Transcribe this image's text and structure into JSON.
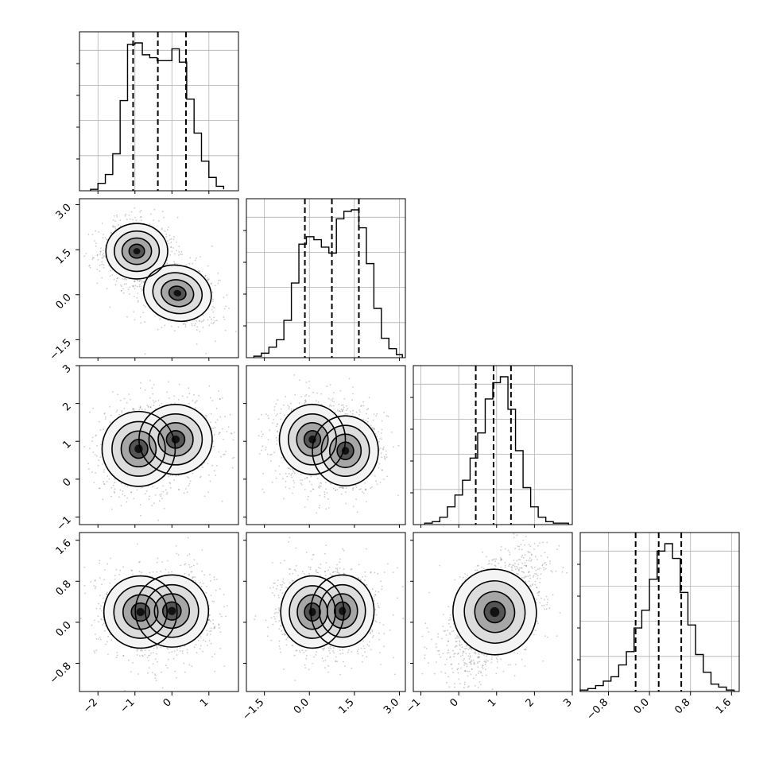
{
  "chart_data": {
    "type": "corner",
    "n_params": 4,
    "grid": true,
    "parameters": [
      {
        "index": 0,
        "range": [
          -2.5,
          1.8
        ],
        "ticks": [
          -2,
          -1,
          0,
          1
        ],
        "tick_labels": [
          "−2",
          "−1",
          "0",
          "1"
        ],
        "quantiles": [
          -1.05,
          -0.38,
          0.38
        ],
        "hist_bins": [
          -2.2,
          -2.0,
          -1.8,
          -1.6,
          -1.4,
          -1.2,
          -1.0,
          -0.8,
          -0.6,
          -0.4,
          -0.2,
          0.0,
          0.2,
          0.4,
          0.6,
          0.8,
          1.0,
          1.2,
          1.4
        ],
        "hist_heights": [
          0.01,
          0.05,
          0.11,
          0.25,
          0.61,
          0.99,
          1.0,
          0.92,
          0.9,
          0.88,
          0.88,
          0.96,
          0.87,
          0.62,
          0.39,
          0.2,
          0.09,
          0.03,
          0.01
        ]
      },
      {
        "index": 1,
        "range": [
          -2.1,
          3.2
        ],
        "ticks": [
          -1.5,
          0.0,
          1.5,
          3.0
        ],
        "tick_labels": [
          "−1.5",
          "0.0",
          "1.5",
          "3.0"
        ],
        "quantiles": [
          -0.15,
          0.75,
          1.65
        ],
        "hist_bins": [
          -1.85,
          -1.6,
          -1.35,
          -1.1,
          -0.85,
          -0.6,
          -0.35,
          -0.1,
          0.15,
          0.4,
          0.65,
          0.9,
          1.15,
          1.4,
          1.65,
          1.9,
          2.15,
          2.4,
          2.65,
          2.9,
          3.1
        ],
        "hist_heights": [
          0.01,
          0.03,
          0.07,
          0.12,
          0.25,
          0.5,
          0.76,
          0.81,
          0.79,
          0.74,
          0.7,
          0.93,
          0.98,
          0.99,
          0.87,
          0.63,
          0.33,
          0.13,
          0.06,
          0.02
        ]
      },
      {
        "index": 2,
        "range": [
          -1.2,
          3.0
        ],
        "ticks": [
          -1,
          0,
          1,
          2,
          3
        ],
        "tick_labels": [
          "−1",
          "0",
          "1",
          "2",
          "3"
        ],
        "quantiles": [
          0.45,
          0.92,
          1.38
        ],
        "hist_bins": [
          -0.9,
          -0.7,
          -0.5,
          -0.3,
          -0.1,
          0.1,
          0.3,
          0.5,
          0.7,
          0.9,
          1.1,
          1.3,
          1.5,
          1.7,
          1.9,
          2.1,
          2.3,
          2.5,
          2.7,
          2.9
        ],
        "hist_heights": [
          0.01,
          0.02,
          0.05,
          0.12,
          0.2,
          0.3,
          0.45,
          0.62,
          0.85,
          0.96,
          1.0,
          0.78,
          0.5,
          0.25,
          0.12,
          0.05,
          0.02,
          0.01,
          0.01
        ]
      },
      {
        "index": 3,
        "range": [
          -1.35,
          1.75
        ],
        "ticks": [
          -0.8,
          0.0,
          0.8,
          1.6
        ],
        "tick_labels": [
          "−0.8",
          "0.0",
          "0.8",
          "1.6"
        ],
        "quantiles": [
          -0.27,
          0.18,
          0.62
        ],
        "hist_bins": [
          -1.35,
          -1.2,
          -1.05,
          -0.9,
          -0.75,
          -0.6,
          -0.45,
          -0.3,
          -0.15,
          0.0,
          0.15,
          0.3,
          0.45,
          0.6,
          0.75,
          0.9,
          1.05,
          1.2,
          1.35,
          1.5,
          1.65
        ],
        "hist_heights": [
          0.01,
          0.02,
          0.04,
          0.07,
          0.1,
          0.18,
          0.27,
          0.43,
          0.55,
          0.76,
          0.95,
          1.0,
          0.9,
          0.67,
          0.45,
          0.25,
          0.13,
          0.05,
          0.03,
          0.01
        ]
      }
    ],
    "joint_modes": [
      {
        "x": 1,
        "y": 0,
        "centers": [
          [
            -0.95,
            1.45
          ],
          [
            0.15,
            0.05
          ]
        ],
        "spread": [
          [
            0.38,
            0.42
          ],
          [
            0.42,
            0.42
          ]
        ],
        "tilt": [
          0,
          -0.4
        ]
      },
      {
        "x": 2,
        "y": 0,
        "centers": [
          [
            -0.9,
            0.8
          ],
          [
            0.1,
            1.05
          ]
        ],
        "spread": [
          [
            0.45,
            0.45
          ],
          [
            0.45,
            0.42
          ]
        ],
        "tilt": [
          0,
          0
        ]
      },
      {
        "x": 2,
        "y": 1,
        "centers": [
          [
            0.1,
            1.05
          ],
          [
            1.2,
            0.75
          ]
        ],
        "spread": [
          [
            0.5,
            0.42
          ],
          [
            0.5,
            0.42
          ]
        ],
        "tilt": [
          0,
          0
        ]
      },
      {
        "x": 3,
        "y": 0,
        "centers": [
          [
            -0.85,
            0.2
          ],
          [
            0.0,
            0.22
          ]
        ],
        "spread": [
          [
            0.45,
            0.32
          ],
          [
            0.45,
            0.32
          ]
        ],
        "tilt": [
          0,
          0
        ]
      },
      {
        "x": 3,
        "y": 1,
        "centers": [
          [
            0.1,
            0.2
          ],
          [
            1.1,
            0.22
          ]
        ],
        "spread": [
          [
            0.48,
            0.32
          ],
          [
            0.48,
            0.32
          ]
        ],
        "tilt": [
          0,
          0
        ]
      },
      {
        "x": 3,
        "y": 2,
        "centers": [
          [
            0.95,
            0.2
          ]
        ],
        "spread": [
          [
            0.5,
            0.38
          ]
        ],
        "tilt": [
          0.5
        ]
      }
    ]
  },
  "colors": {
    "ink": "#000000",
    "grid": "#b0b0b0",
    "scatter": "#6b6b6b",
    "background": "#ffffff"
  }
}
